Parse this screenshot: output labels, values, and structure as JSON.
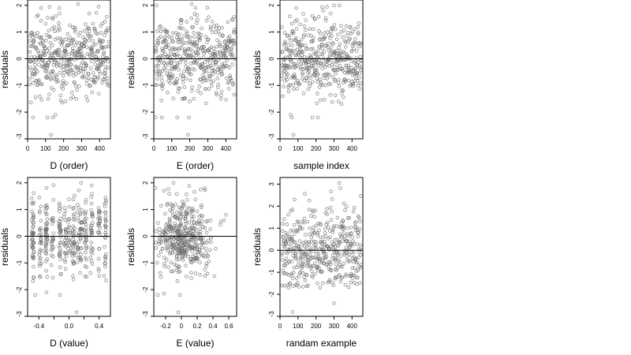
{
  "chart_data": [
    {
      "type": "scatter",
      "title": "",
      "xlabel": "D (order)",
      "ylabel": "residuals",
      "xlim": [
        0,
        460
      ],
      "ylim": [
        -3,
        2.2
      ],
      "xticks": [
        0,
        100,
        200,
        300,
        400
      ],
      "yticks": [
        -3,
        -2,
        -1,
        0,
        1,
        2
      ],
      "reference_line_y": 0,
      "point_color": "#666666",
      "n": 460,
      "x_distribution": "index",
      "spread": 0.7,
      "seed": 11,
      "highlights": [
        {
          "x": 30,
          "y": -2.2
        },
        {
          "x": 110,
          "y": -2.2
        },
        {
          "x": 140,
          "y": -2.2
        },
        {
          "x": 155,
          "y": -2.1
        },
        {
          "x": 130,
          "y": -2.85
        },
        {
          "x": 75,
          "y": 1.9
        },
        {
          "x": 280,
          "y": 2.05
        },
        {
          "x": 395,
          "y": 1.95
        }
      ]
    },
    {
      "type": "scatter",
      "title": "",
      "xlabel": "E (order)",
      "ylabel": "residuals",
      "xlim": [
        0,
        460
      ],
      "ylim": [
        -3,
        2.2
      ],
      "xticks": [
        0,
        100,
        200,
        300,
        400
      ],
      "yticks": [
        -3,
        -2,
        -1,
        0,
        1,
        2
      ],
      "reference_line_y": 0,
      "point_color": "#666666",
      "n": 460,
      "x_distribution": "index",
      "spread": 0.7,
      "seed": 23,
      "highlights": [
        {
          "x": 10,
          "y": -2.2
        },
        {
          "x": 45,
          "y": -2.2
        },
        {
          "x": 130,
          "y": -2.2
        },
        {
          "x": 195,
          "y": -2.2
        },
        {
          "x": 190,
          "y": -2.85
        },
        {
          "x": 15,
          "y": 2.0
        },
        {
          "x": 210,
          "y": 2.05
        }
      ]
    },
    {
      "type": "scatter",
      "title": "",
      "xlabel": "sample index",
      "ylabel": "residuals",
      "xlim": [
        0,
        460
      ],
      "ylim": [
        -3,
        2.2
      ],
      "xticks": [
        0,
        100,
        200,
        300,
        400
      ],
      "yticks": [
        -3,
        -2,
        -1,
        0,
        1,
        2
      ],
      "reference_line_y": 0,
      "point_color": "#666666",
      "n": 460,
      "x_distribution": "index",
      "spread": 0.7,
      "seed": 37,
      "highlights": [
        {
          "x": 60,
          "y": -2.1
        },
        {
          "x": 65,
          "y": -2.2
        },
        {
          "x": 180,
          "y": -2.2
        },
        {
          "x": 210,
          "y": -2.2
        },
        {
          "x": 75,
          "y": -2.85
        },
        {
          "x": 90,
          "y": 1.9
        },
        {
          "x": 300,
          "y": 2.0
        },
        {
          "x": 330,
          "y": 2.0
        }
      ]
    },
    {
      "type": "scatter",
      "title": "",
      "xlabel": "D (value)",
      "ylabel": "residuals",
      "xlim": [
        -0.55,
        0.55
      ],
      "ylim": [
        -3,
        2.2
      ],
      "xticks": [
        -0.4,
        -0.2,
        0.0,
        0.2,
        0.4
      ],
      "xticklabels": [
        "-0.4",
        "",
        "0.0",
        "",
        "0.4"
      ],
      "yticks": [
        -3,
        -2,
        -1,
        0,
        1,
        2
      ],
      "reference_line_y": 0,
      "point_color": "#666666",
      "n": 420,
      "x_distribution": "columns",
      "x_columns": [
        -0.48,
        -0.38,
        -0.3,
        -0.22,
        -0.12,
        -0.05,
        0.0,
        0.06,
        0.12,
        0.16,
        0.22,
        0.3,
        0.4,
        0.48
      ],
      "spread": 0.7,
      "seed": 53,
      "highlights": [
        {
          "x": -0.45,
          "y": -2.2
        },
        {
          "x": -0.3,
          "y": -2.1
        },
        {
          "x": -0.12,
          "y": -2.2
        },
        {
          "x": 0.1,
          "y": -2.85
        },
        {
          "x": 0.16,
          "y": 2.0
        },
        {
          "x": 0.3,
          "y": 1.9
        }
      ]
    },
    {
      "type": "scatter",
      "title": "",
      "xlabel": "E (value)",
      "ylabel": "residuals",
      "xlim": [
        -0.35,
        0.7
      ],
      "ylim": [
        -3,
        2.2
      ],
      "xticks": [
        -0.2,
        0.0,
        0.2,
        0.4,
        0.6
      ],
      "yticks": [
        -3,
        -2,
        -1,
        0,
        1,
        2
      ],
      "reference_line_y": 0,
      "point_color": "#666666",
      "n": 420,
      "x_distribution": "normal",
      "x_center": 0.02,
      "x_sd": 0.18,
      "spread": 0.7,
      "seed": 71,
      "highlights": [
        {
          "x": -0.33,
          "y": 1.8
        },
        {
          "x": -0.3,
          "y": -2.2
        },
        {
          "x": -0.22,
          "y": -2.15
        },
        {
          "x": -0.02,
          "y": -2.2
        },
        {
          "x": -0.04,
          "y": -2.85
        },
        {
          "x": -0.1,
          "y": 2.0
        }
      ]
    },
    {
      "type": "scatter",
      "title": "",
      "xlabel": "randam example",
      "ylabel": "residuals",
      "xlim": [
        0,
        460
      ],
      "ylim": [
        -3,
        3.3
      ],
      "xticks": [
        0,
        100,
        200,
        300,
        400
      ],
      "yticks": [
        -3,
        -2,
        -1,
        0,
        1,
        2,
        3
      ],
      "reference_line_y": 0,
      "point_color": "#666666",
      "n": 460,
      "x_distribution": "index",
      "spread": 1.0,
      "seed": 89,
      "highlights": [
        {
          "x": 70,
          "y": -2.8
        },
        {
          "x": 330,
          "y": 3.05
        },
        {
          "x": 300,
          "y": -2.4
        }
      ]
    }
  ]
}
